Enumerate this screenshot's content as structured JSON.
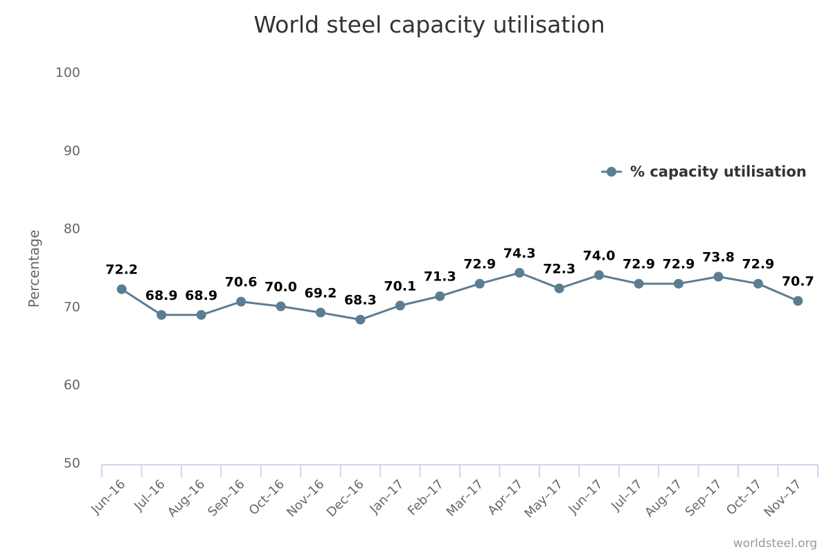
{
  "chart_data": {
    "type": "line",
    "title": "World steel capacity utilisation",
    "xlabel": "",
    "ylabel": "Percentage",
    "ylim": [
      50,
      100
    ],
    "yticks": [
      50,
      60,
      70,
      80,
      90,
      100
    ],
    "grid": false,
    "legend_position": "right",
    "categories": [
      "Jun-16",
      "Jul-16",
      "Aug-16",
      "Sep-16",
      "Oct-16",
      "Nov-16",
      "Dec-16",
      "Jan-17",
      "Feb-17",
      "Mar-17",
      "Apr-17",
      "May-17",
      "Jun-17",
      "Jul-17",
      "Aug-17",
      "Sep-17",
      "Oct-17",
      "Nov-17"
    ],
    "series": [
      {
        "name": "% capacity utilisation",
        "color": "#5b7d91",
        "values": [
          72.2,
          68.9,
          68.9,
          70.6,
          70.0,
          69.2,
          68.3,
          70.1,
          71.3,
          72.9,
          74.3,
          72.3,
          74.0,
          72.9,
          72.9,
          73.8,
          72.9,
          70.7
        ],
        "labels": [
          "72.2",
          "68.9",
          "68.9",
          "70.6",
          "70.0",
          "69.2",
          "68.3",
          "70.1",
          "71.3",
          "72.9",
          "74.3",
          "72.3",
          "74.0",
          "72.9",
          "72.9",
          "73.8",
          "72.9",
          "70.7"
        ]
      }
    ],
    "credit": "worldsteel.org",
    "axis_color": "#ccd6eb"
  }
}
